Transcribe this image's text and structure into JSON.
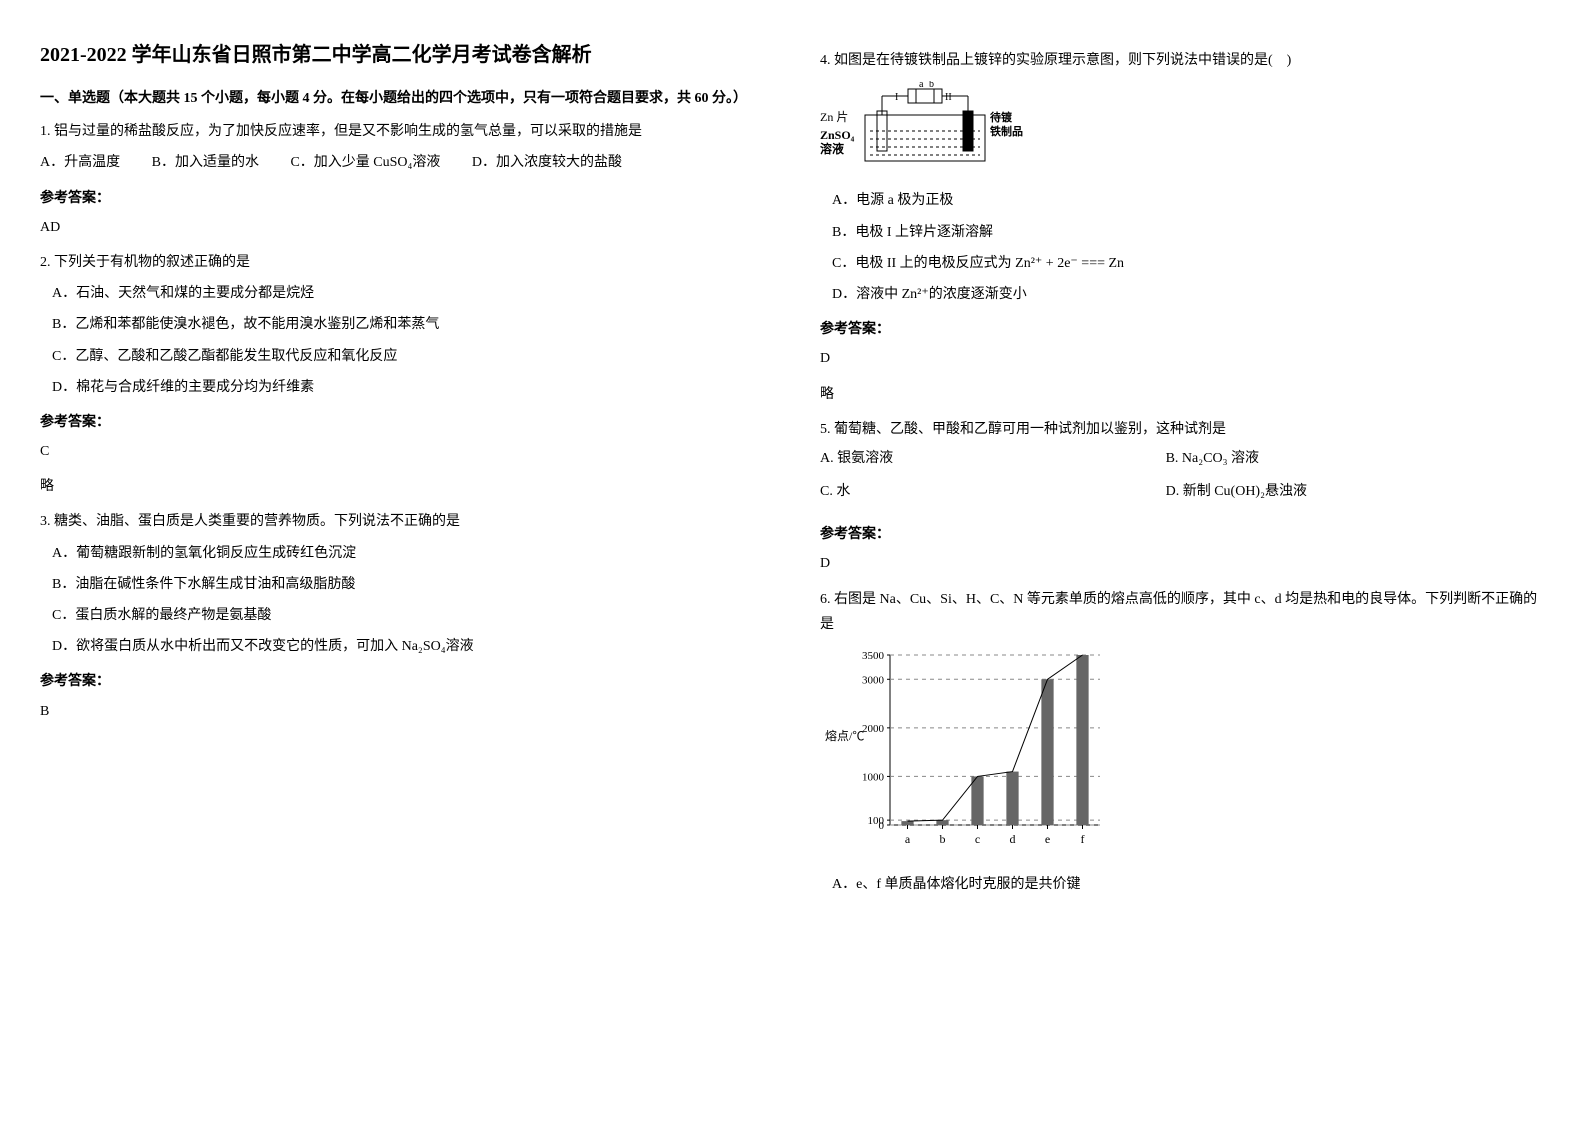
{
  "title": "2021-2022 学年山东省日照市第二中学高二化学月考试卷含解析",
  "section1_title": "一、单选题（本大题共 15 个小题，每小题 4 分。在每小题给出的四个选项中，只有一项符合题目要求，共 60 分。）",
  "q1": {
    "text": "1. 铝与过量的稀盐酸反应，为了加快反应速率，但是又不影响生成的氢气总量，可以采取的措施是",
    "A": "A．升高温度",
    "B": "B．加入适量的水",
    "C": "C．加入少量 CuSO₄溶液",
    "D": "D．加入浓度较大的盐酸",
    "answer_label": "参考答案：",
    "answer": "AD"
  },
  "q2": {
    "text": "2. 下列关于有机物的叙述正确的是",
    "A": "A．石油、天然气和煤的主要成分都是烷烃",
    "B": "B．乙烯和苯都能使溴水褪色，故不能用溴水鉴别乙烯和苯蒸气",
    "C": "C．乙醇、乙酸和乙酸乙酯都能发生取代反应和氧化反应",
    "D": "D．棉花与合成纤维的主要成分均为纤维素",
    "answer_label": "参考答案：",
    "answer": "C",
    "note": "略"
  },
  "q3": {
    "text": "3. 糖类、油脂、蛋白质是人类重要的营养物质。下列说法不正确的是",
    "A": "A．葡萄糖跟新制的氢氧化铜反应生成砖红色沉淀",
    "B": "B．油脂在碱性条件下水解生成甘油和高级脂肪酸",
    "C": "C．蛋白质水解的最终产物是氨基酸",
    "D": "D．欲将蛋白质从水中析出而又不改变它的性质，可加入 Na₂SO₄溶液",
    "answer_label": "参考答案：",
    "answer": "B"
  },
  "q4": {
    "text": "4. 如图是在待镀铁制品上镀锌的实验原理示意图，则下列说法中错误的是(　)",
    "diagram": {
      "zn_label": "Zn 片",
      "znso4_label": "ZnSO₄",
      "solution_label": "溶液",
      "a_label": "a",
      "b_label": "b",
      "battery_label": "I",
      "item_label1": "待镀",
      "item_label2": "铁制品"
    },
    "A": "A．电源 a 极为正极",
    "B": "B．电极 I 上锌片逐渐溶解",
    "C_pre": "C．电极 II 上的电极反应式为",
    "C_eq": "Zn²⁺ + 2e⁻ === Zn",
    "D": "D．溶液中 Zn²⁺的浓度逐渐变小",
    "answer_label": "参考答案：",
    "answer": "D",
    "note": "略"
  },
  "q5": {
    "text": "5. 葡萄糖、乙酸、甲酸和乙醇可用一种试剂加以鉴别，这种试剂是",
    "A": "A. 银氨溶液",
    "B": "B. Na₂CO₃ 溶液",
    "C": "C. 水",
    "D": "D. 新制 Cu(OH)₂悬浊液",
    "answer_label": "参考答案：",
    "answer": "D"
  },
  "q6": {
    "text": "6. 右图是 Na、Cu、Si、H、C、N 等元素单质的熔点高低的顺序，其中 c、d 均是热和电的良导体。下列判断不正确的是",
    "chart": {
      "ylabel": "熔点/℃",
      "yticks": [
        "0",
        "100",
        "1000",
        "2000",
        "3000",
        "3500"
      ],
      "categories": [
        "a",
        "b",
        "c",
        "d",
        "e",
        "f"
      ],
      "values": [
        80,
        100,
        1000,
        1100,
        3000,
        3500
      ],
      "bar_color": "#666666",
      "grid_color": "#888888",
      "axis_color": "#000000"
    },
    "A": "A．e、f 单质晶体熔化时克服的是共价键"
  }
}
